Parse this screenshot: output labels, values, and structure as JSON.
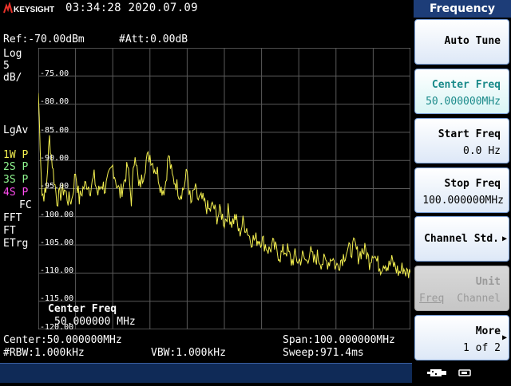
{
  "header": {
    "brand": "KEYSIGHT",
    "datetime": "03:34:28 2020.07.09",
    "menu_title": "Frequency"
  },
  "left_panel": {
    "ref": "Ref:-70.00dBm",
    "att": "#Att:0.00dB",
    "scale_type": "Log",
    "scale_value": "5",
    "scale_unit": "dB/",
    "detector": "LgAv",
    "traces": [
      {
        "label": "1W",
        "mode": "P",
        "color": "#f4f050"
      },
      {
        "label": "2S",
        "mode": "P",
        "color": "#8ef58e"
      },
      {
        "label": "3S",
        "mode": "P",
        "color": "#8ef58e"
      },
      {
        "label": "4S",
        "mode": "P",
        "color": "#ff4df0"
      }
    ],
    "fc": "FC",
    "fft": "FFT",
    "ft": "FT",
    "etrg": "ETrg"
  },
  "plot": {
    "y_ticks": [
      "-75.00",
      "-80.00",
      "-85.00",
      "-90.00",
      "-95.00",
      "-100.00",
      "-105.00",
      "-110.00",
      "-115.00",
      "-120.00"
    ],
    "annotation_label": "Center Freq",
    "annotation_value": "50.000000 MHz",
    "trace_color": "#f4f050",
    "grid_color": "#5a5a5a"
  },
  "chart_data": {
    "type": "line",
    "ylim": [
      -120,
      -70
    ],
    "xlim": [
      0,
      100
    ],
    "x_unit": "MHz",
    "y_unit": "dBm",
    "series": [
      {
        "x": [
          0,
          1,
          2,
          3,
          4,
          5,
          6,
          7,
          8,
          9,
          10,
          11,
          12,
          13,
          14,
          15,
          16,
          17,
          18,
          19,
          20,
          21,
          22,
          23,
          24,
          25,
          26,
          27,
          28,
          29,
          30,
          31,
          32,
          33,
          34,
          35,
          36,
          37,
          38,
          39,
          40,
          41,
          42,
          43,
          44,
          45,
          46,
          47,
          48,
          49,
          50,
          51,
          52,
          53,
          54,
          55,
          56,
          57,
          58,
          59,
          60,
          61,
          62,
          63,
          64,
          65,
          66,
          67,
          68,
          69,
          70,
          71,
          72,
          73,
          74,
          75,
          76,
          77,
          78,
          79,
          80,
          81,
          82,
          83,
          84,
          85,
          86,
          87,
          88,
          89,
          90,
          91,
          92,
          93,
          94,
          95,
          96,
          97,
          98,
          99,
          100
        ],
        "y": [
          -78,
          -96,
          -96,
          -86,
          -92,
          -97,
          -96,
          -95,
          -97,
          -97,
          -92,
          -97,
          -95,
          -94,
          -95,
          -93,
          -96,
          -94,
          -95,
          -93,
          -91,
          -94,
          -96,
          -94,
          -91,
          -97,
          -88,
          -95,
          -93,
          -90,
          -89,
          -91,
          -92,
          -95,
          -95,
          -89,
          -93,
          -94,
          -96,
          -95,
          -92,
          -98,
          -95,
          -97,
          -97,
          -98,
          -99,
          -98,
          -100,
          -99,
          -101,
          -99,
          -101,
          -100,
          -103,
          -101,
          -102,
          -104,
          -104,
          -104,
          -104,
          -105,
          -106,
          -105,
          -106,
          -107,
          -106,
          -106,
          -108,
          -107,
          -108,
          -107,
          -108,
          -106,
          -108,
          -107,
          -108,
          -108,
          -108,
          -107,
          -109,
          -108,
          -107,
          -106,
          -106,
          -105,
          -107,
          -106,
          -106,
          -108,
          -106,
          -108,
          -109,
          -108,
          -109,
          -108,
          -109,
          -110,
          -109,
          -110,
          -110
        ]
      }
    ]
  },
  "bottom": {
    "center": "Center:50.000000MHz",
    "span": "Span:100.000000MHz",
    "rbw": "#RBW:1.000kHz",
    "vbw": "VBW:1.000kHz",
    "sweep": "Sweep:971.4ms"
  },
  "softkeys": [
    {
      "line1": "Auto Tune",
      "line2": ""
    },
    {
      "line1": "Center Freq",
      "line2": "50.000000MHz"
    },
    {
      "line1": "Start Freq",
      "line2": "0.0 Hz"
    },
    {
      "line1": "Stop Freq",
      "line2": "100.000000MHz"
    },
    {
      "line1": "Channel Std.",
      "line2": ""
    },
    {
      "line1": "Unit",
      "line2a": "Freq",
      "line2b": "Channel"
    },
    {
      "line1": "More",
      "line2": "1 of 2"
    }
  ]
}
